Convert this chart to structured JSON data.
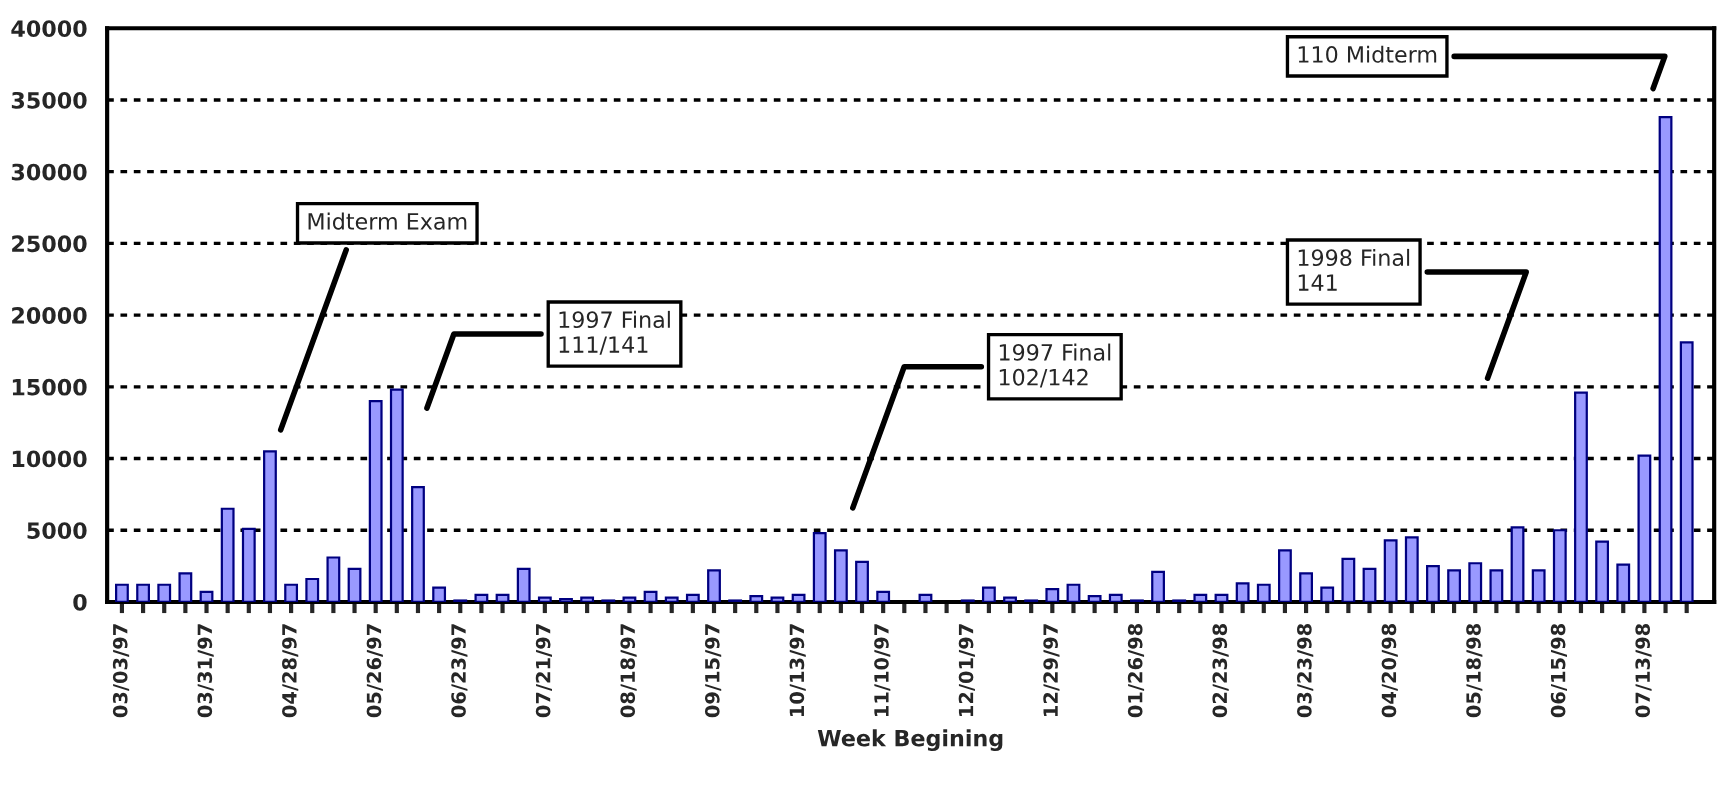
{
  "chart_data": {
    "type": "bar",
    "xlabel": "Week Begining",
    "categories": [
      "03/03/97",
      null,
      null,
      null,
      "03/31/97",
      null,
      null,
      null,
      "04/28/97",
      null,
      null,
      null,
      "05/26/97",
      null,
      null,
      null,
      "06/23/97",
      null,
      null,
      null,
      "07/21/97",
      null,
      null,
      null,
      "08/18/97",
      null,
      null,
      null,
      "09/15/97",
      null,
      null,
      null,
      "10/13/97",
      null,
      null,
      null,
      "11/10/97",
      null,
      null,
      null,
      "12/01/97",
      null,
      null,
      null,
      "12/29/97",
      null,
      null,
      null,
      "01/26/98",
      null,
      null,
      null,
      "02/23/98",
      null,
      null,
      null,
      "03/23/98",
      null,
      null,
      null,
      "04/20/98",
      null,
      null,
      null,
      "05/18/98",
      null,
      null,
      null,
      "06/15/98",
      null,
      null,
      null,
      "07/13/98",
      null,
      null
    ],
    "values": [
      1200,
      1200,
      1200,
      2000,
      700,
      6500,
      5100,
      10500,
      1200,
      1600,
      3100,
      2300,
      14000,
      14800,
      8000,
      1000,
      100,
      500,
      500,
      2300,
      300,
      200,
      300,
      100,
      300,
      700,
      300,
      500,
      2200,
      100,
      400,
      300,
      500,
      4800,
      3600,
      2800,
      700,
      0,
      500,
      0,
      100,
      1000,
      300,
      100,
      900,
      1200,
      400,
      500,
      100,
      2100,
      100,
      500,
      500,
      1300,
      1200,
      3600,
      2000,
      1000,
      3000,
      2300,
      4300,
      4500,
      2500,
      2200,
      2700,
      2200,
      5200,
      2200,
      5000,
      14600,
      4200,
      2600,
      10200,
      33800,
      18100
    ],
    "color": "#9999ff",
    "ylim": [
      0,
      40000
    ],
    "yticks": [
      0,
      5000,
      10000,
      15000,
      20000,
      25000,
      30000,
      35000,
      40000
    ],
    "grid": "y",
    "annotations": [
      "Midterm Exam",
      "1997 Final\n111/141",
      "1997 Final\n102/142",
      "1998 Final\n141",
      "110 Midterm"
    ]
  }
}
